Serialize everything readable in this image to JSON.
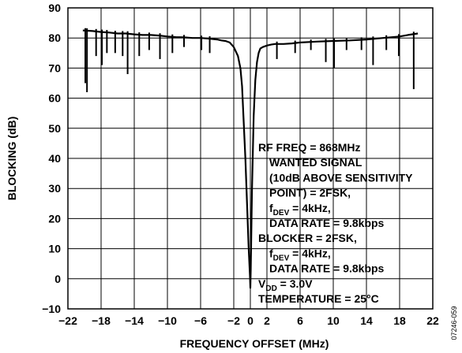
{
  "chart_data": {
    "type": "line",
    "xlabel": "FREQUENCY OFFSET (MHz)",
    "ylabel": "BLOCKING (dB)",
    "xlim": [
      -22,
      22
    ],
    "ylim": [
      -10,
      90
    ],
    "x_ticks": [
      -22,
      -18,
      -14,
      -10,
      -6,
      -2,
      0,
      2,
      6,
      10,
      14,
      18,
      22
    ],
    "x_tick_labels": [
      "−22",
      "−18",
      "−14",
      "−10",
      "−6",
      "−2",
      "0",
      "2",
      "6",
      "10",
      "14",
      "18",
      "22"
    ],
    "y_ticks": [
      -10,
      0,
      10,
      20,
      30,
      40,
      50,
      60,
      70,
      80,
      90
    ],
    "y_tick_labels": [
      "−10",
      "0",
      "10",
      "20",
      "30",
      "40",
      "50",
      "60",
      "70",
      "80",
      "90"
    ],
    "grid": true,
    "series": [
      {
        "x": [
          -20.2,
          -19.0,
          -18.0,
          -17.0,
          -16.0,
          -15.0,
          -14.0,
          -13.0,
          -12.0,
          -11.0,
          -10.0,
          -9.0,
          -8.0,
          -7.0,
          -6.0,
          -5.0,
          -4.0,
          -3.5,
          -3.0,
          -2.5,
          -2.0,
          -1.5,
          -1.2,
          -1.0,
          -0.8,
          -0.6,
          -0.4,
          -0.2,
          -0.05,
          0.0,
          0.05,
          0.2,
          0.4,
          0.6,
          0.8,
          1.0,
          1.2,
          1.5,
          2.0,
          2.5,
          3.0,
          4.0,
          5.0,
          6.0,
          8.0,
          10.0,
          12.0,
          14.0,
          16.0,
          18.0,
          19.0,
          20.2
        ],
        "y": [
          82.5,
          82.3,
          82.0,
          81.8,
          81.5,
          81.5,
          81.2,
          81.0,
          81.0,
          80.8,
          80.5,
          80.3,
          80.2,
          80.0,
          80.0,
          79.8,
          79.5,
          79.2,
          79.0,
          78.5,
          77.0,
          74.0,
          70.0,
          64.0,
          52.0,
          40.0,
          25.0,
          10.0,
          1.0,
          -3.0,
          3.0,
          30.0,
          54.0,
          66.0,
          72.0,
          75.0,
          76.5,
          77.0,
          77.5,
          77.8,
          78.0,
          78.0,
          78.2,
          78.5,
          78.8,
          79.0,
          79.2,
          79.5,
          80.0,
          80.5,
          81.0,
          81.5
        ]
      }
    ],
    "spikes": [
      {
        "x": -19.9,
        "y": 65
      },
      {
        "x": -19.7,
        "y": 62
      },
      {
        "x": -18.6,
        "y": 74
      },
      {
        "x": -17.9,
        "y": 71
      },
      {
        "x": -17.3,
        "y": 75
      },
      {
        "x": -16.3,
        "y": 75
      },
      {
        "x": -15.4,
        "y": 74
      },
      {
        "x": -14.8,
        "y": 68
      },
      {
        "x": -13.4,
        "y": 74
      },
      {
        "x": -12.2,
        "y": 76
      },
      {
        "x": -10.9,
        "y": 73
      },
      {
        "x": -9.4,
        "y": 75
      },
      {
        "x": -8.0,
        "y": 77
      },
      {
        "x": -5.9,
        "y": 76
      },
      {
        "x": -4.9,
        "y": 75
      },
      {
        "x": 3.2,
        "y": 73
      },
      {
        "x": 5.4,
        "y": 75
      },
      {
        "x": 7.3,
        "y": 76
      },
      {
        "x": 9.1,
        "y": 72
      },
      {
        "x": 10.1,
        "y": 70
      },
      {
        "x": 11.6,
        "y": 76
      },
      {
        "x": 13.4,
        "y": 76
      },
      {
        "x": 14.8,
        "y": 71
      },
      {
        "x": 16.4,
        "y": 76
      },
      {
        "x": 17.9,
        "y": 74
      },
      {
        "x": 19.7,
        "y": 63
      }
    ],
    "annotation_lines": [
      {
        "text": "RF FREQ = 868MHz",
        "indent": 0
      },
      {
        "text": "WANTED SIGNAL",
        "indent": 1
      },
      {
        "text": "(10dB ABOVE SENSITIVITY",
        "indent": 1
      },
      {
        "text": "POINT) = 2FSK,",
        "indent": 1
      },
      {
        "text": "f",
        "sub": "DEV",
        "rest": " = 4kHz,",
        "indent": 1
      },
      {
        "text": "DATA RATE = 9.8kbps",
        "indent": 1
      },
      {
        "text": "BLOCKER = 2FSK,",
        "indent": 0
      },
      {
        "text": "f",
        "sub": "DEV",
        "rest": " = 4kHz,",
        "indent": 1
      },
      {
        "text": "DATA RATE = 9.8kbps",
        "indent": 1
      },
      {
        "text": "V",
        "sub": "DD",
        "rest": " = 3.0V",
        "indent": 0
      },
      {
        "text": "TEMPERATURE = 25°C",
        "indent": 0
      }
    ],
    "figure_id": "07246-059"
  }
}
